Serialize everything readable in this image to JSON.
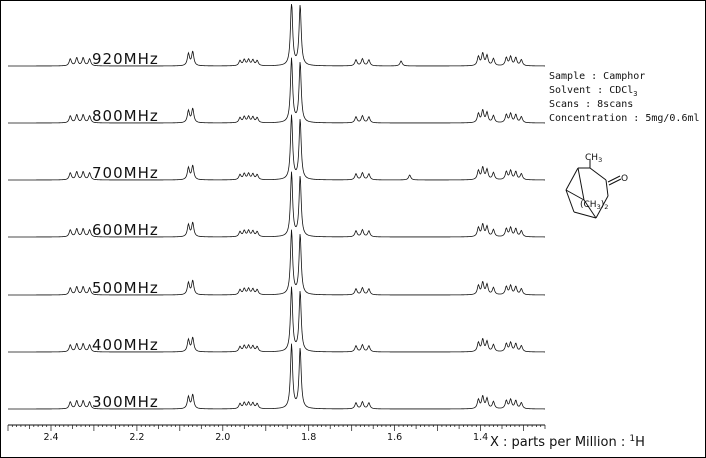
{
  "chart_data": {
    "type": "line",
    "title": "",
    "xlabel": "X : parts per Million : ¹H",
    "ylabel": "",
    "xlim": [
      2.5,
      1.25
    ],
    "x_ticks": [
      2.4,
      2.2,
      2.0,
      1.8,
      1.6,
      1.4
    ],
    "x_tick_labels": [
      "2.4",
      "2.2",
      "2.0",
      "1.8",
      "1.6",
      "1.4"
    ],
    "x_reversed": true,
    "grid": false,
    "stacked": true,
    "series": [
      {
        "name": "920MHz",
        "peaks": [
          [
            2.355,
            0.35
          ],
          [
            2.34,
            0.4
          ],
          [
            2.325,
            0.4
          ],
          [
            2.31,
            0.35
          ],
          [
            2.08,
            0.6
          ],
          [
            2.07,
            0.7
          ],
          [
            1.96,
            0.25
          ],
          [
            1.95,
            0.3
          ],
          [
            1.94,
            0.3
          ],
          [
            1.93,
            0.28
          ],
          [
            1.92,
            0.25
          ],
          [
            1.84,
            3.2
          ],
          [
            1.82,
            3.0
          ],
          [
            1.69,
            0.3
          ],
          [
            1.675,
            0.35
          ],
          [
            1.66,
            0.3
          ],
          [
            1.585,
            0.25
          ],
          [
            1.405,
            0.45
          ],
          [
            1.395,
            0.6
          ],
          [
            1.385,
            0.5
          ],
          [
            1.37,
            0.35
          ],
          [
            1.34,
            0.4
          ],
          [
            1.33,
            0.45
          ],
          [
            1.318,
            0.4
          ],
          [
            1.305,
            0.3
          ]
        ]
      },
      {
        "name": "800MHz",
        "peaks": [
          [
            2.355,
            0.35
          ],
          [
            2.34,
            0.4
          ],
          [
            2.325,
            0.4
          ],
          [
            2.31,
            0.35
          ],
          [
            2.08,
            0.6
          ],
          [
            2.07,
            0.7
          ],
          [
            1.96,
            0.25
          ],
          [
            1.95,
            0.3
          ],
          [
            1.94,
            0.3
          ],
          [
            1.93,
            0.28
          ],
          [
            1.92,
            0.25
          ],
          [
            1.84,
            3.2
          ],
          [
            1.82,
            3.0
          ],
          [
            1.69,
            0.3
          ],
          [
            1.675,
            0.35
          ],
          [
            1.66,
            0.3
          ],
          [
            1.405,
            0.45
          ],
          [
            1.395,
            0.6
          ],
          [
            1.385,
            0.5
          ],
          [
            1.37,
            0.35
          ],
          [
            1.34,
            0.4
          ],
          [
            1.33,
            0.45
          ],
          [
            1.318,
            0.4
          ],
          [
            1.305,
            0.3
          ]
        ]
      },
      {
        "name": "700MHz",
        "peaks": [
          [
            2.355,
            0.35
          ],
          [
            2.34,
            0.4
          ],
          [
            2.325,
            0.4
          ],
          [
            2.31,
            0.35
          ],
          [
            2.08,
            0.6
          ],
          [
            2.07,
            0.7
          ],
          [
            1.96,
            0.25
          ],
          [
            1.95,
            0.3
          ],
          [
            1.94,
            0.3
          ],
          [
            1.93,
            0.28
          ],
          [
            1.92,
            0.25
          ],
          [
            1.84,
            3.2
          ],
          [
            1.82,
            3.0
          ],
          [
            1.69,
            0.3
          ],
          [
            1.675,
            0.35
          ],
          [
            1.66,
            0.3
          ],
          [
            1.565,
            0.25
          ],
          [
            1.405,
            0.45
          ],
          [
            1.395,
            0.6
          ],
          [
            1.385,
            0.5
          ],
          [
            1.37,
            0.35
          ],
          [
            1.34,
            0.4
          ],
          [
            1.33,
            0.45
          ],
          [
            1.318,
            0.4
          ],
          [
            1.305,
            0.3
          ]
        ]
      },
      {
        "name": "600MHz",
        "peaks": [
          [
            2.355,
            0.35
          ],
          [
            2.34,
            0.4
          ],
          [
            2.325,
            0.4
          ],
          [
            2.31,
            0.35
          ],
          [
            2.08,
            0.6
          ],
          [
            2.07,
            0.7
          ],
          [
            1.96,
            0.25
          ],
          [
            1.95,
            0.3
          ],
          [
            1.94,
            0.3
          ],
          [
            1.93,
            0.28
          ],
          [
            1.92,
            0.25
          ],
          [
            1.84,
            3.2
          ],
          [
            1.82,
            3.0
          ],
          [
            1.69,
            0.3
          ],
          [
            1.675,
            0.35
          ],
          [
            1.66,
            0.3
          ],
          [
            1.405,
            0.45
          ],
          [
            1.395,
            0.6
          ],
          [
            1.385,
            0.5
          ],
          [
            1.37,
            0.35
          ],
          [
            1.34,
            0.4
          ],
          [
            1.33,
            0.45
          ],
          [
            1.318,
            0.4
          ],
          [
            1.305,
            0.3
          ]
        ]
      },
      {
        "name": "500MHz",
        "peaks": [
          [
            2.355,
            0.35
          ],
          [
            2.34,
            0.4
          ],
          [
            2.325,
            0.4
          ],
          [
            2.31,
            0.35
          ],
          [
            2.08,
            0.6
          ],
          [
            2.07,
            0.7
          ],
          [
            1.96,
            0.25
          ],
          [
            1.95,
            0.3
          ],
          [
            1.94,
            0.3
          ],
          [
            1.93,
            0.28
          ],
          [
            1.92,
            0.25
          ],
          [
            1.84,
            3.2
          ],
          [
            1.82,
            3.0
          ],
          [
            1.69,
            0.3
          ],
          [
            1.675,
            0.35
          ],
          [
            1.66,
            0.3
          ],
          [
            1.405,
            0.45
          ],
          [
            1.395,
            0.6
          ],
          [
            1.385,
            0.5
          ],
          [
            1.37,
            0.35
          ],
          [
            1.34,
            0.4
          ],
          [
            1.33,
            0.45
          ],
          [
            1.318,
            0.4
          ],
          [
            1.305,
            0.3
          ]
        ]
      },
      {
        "name": "400MHz",
        "peaks": [
          [
            2.355,
            0.35
          ],
          [
            2.34,
            0.4
          ],
          [
            2.325,
            0.4
          ],
          [
            2.31,
            0.35
          ],
          [
            2.08,
            0.6
          ],
          [
            2.07,
            0.7
          ],
          [
            1.96,
            0.25
          ],
          [
            1.95,
            0.3
          ],
          [
            1.94,
            0.3
          ],
          [
            1.93,
            0.28
          ],
          [
            1.92,
            0.25
          ],
          [
            1.84,
            3.2
          ],
          [
            1.82,
            3.0
          ],
          [
            1.69,
            0.3
          ],
          [
            1.675,
            0.35
          ],
          [
            1.66,
            0.3
          ],
          [
            1.405,
            0.45
          ],
          [
            1.395,
            0.6
          ],
          [
            1.385,
            0.5
          ],
          [
            1.37,
            0.35
          ],
          [
            1.34,
            0.4
          ],
          [
            1.33,
            0.45
          ],
          [
            1.318,
            0.4
          ],
          [
            1.305,
            0.3
          ]
        ]
      },
      {
        "name": "300MHz",
        "peaks": [
          [
            2.355,
            0.35
          ],
          [
            2.34,
            0.4
          ],
          [
            2.325,
            0.4
          ],
          [
            2.31,
            0.35
          ],
          [
            2.08,
            0.6
          ],
          [
            2.07,
            0.7
          ],
          [
            1.96,
            0.25
          ],
          [
            1.95,
            0.3
          ],
          [
            1.94,
            0.3
          ],
          [
            1.93,
            0.28
          ],
          [
            1.92,
            0.25
          ],
          [
            1.84,
            3.2
          ],
          [
            1.82,
            3.0
          ],
          [
            1.69,
            0.3
          ],
          [
            1.675,
            0.35
          ],
          [
            1.66,
            0.3
          ],
          [
            1.405,
            0.45
          ],
          [
            1.395,
            0.6
          ],
          [
            1.385,
            0.5
          ],
          [
            1.37,
            0.35
          ],
          [
            1.34,
            0.4
          ],
          [
            1.33,
            0.45
          ],
          [
            1.318,
            0.4
          ],
          [
            1.305,
            0.3
          ]
        ]
      }
    ]
  },
  "freq_labels": [
    "920MHz",
    "800MHz",
    "700MHz",
    "600MHz",
    "500MHz",
    "400MHz",
    "300MHz"
  ],
  "sample_info": {
    "sample": "Sample : Camphor",
    "solvent": "Solvent : CDCl",
    "solvent_sub": "3",
    "scans": "Scans : 8scans",
    "concentration": "Concentration : 5mg/0.6ml"
  },
  "axis": {
    "xlabel_prefix": "X : parts per Million : ",
    "xlabel_sup": "1",
    "xlabel_nucleus": "H"
  },
  "molecule": {
    "ch3": "CH",
    "ch3_sub": "3",
    "bridge": "(CH",
    "bridge_sub": "3",
    "bridge_close": ")",
    "bridge_sub2": "2",
    "oxygen": "O"
  }
}
